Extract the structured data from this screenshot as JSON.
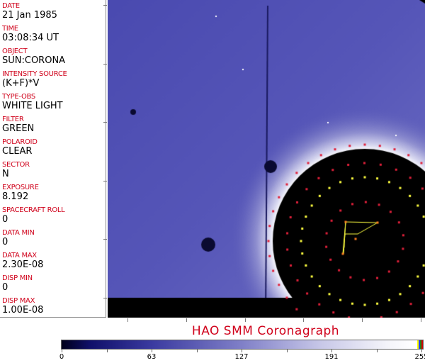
{
  "metadata": [
    {
      "label": "DATE",
      "value": "21 Jan 1985"
    },
    {
      "label": "TIME",
      "value": "03:08:34 UT"
    },
    {
      "label": "OBJECT",
      "value": "SUN:CORONA"
    },
    {
      "label": "INTENSITY SOURCE",
      "value": "(K+F)*V"
    },
    {
      "label": "TYPE-OBS",
      "value": "WHITE LIGHT"
    },
    {
      "label": "FILTER",
      "value": "GREEN"
    },
    {
      "label": "POLAROID",
      "value": "CLEAR"
    },
    {
      "label": "SECTOR",
      "value": "N"
    },
    {
      "label": "EXPOSURE",
      "value": "8.192"
    },
    {
      "label": "SPACECRAFT ROLL",
      "value": "0"
    },
    {
      "label": "DATA MIN",
      "value": "0"
    },
    {
      "label": "DATA MAX",
      "value": "2.30E-08"
    },
    {
      "label": "DISP MIN",
      "value": "0"
    },
    {
      "label": "DISP MAX",
      "value": "1.00E-08"
    }
  ],
  "title": "HAO   SMM  Coronagraph",
  "colorbar": {
    "ticks": [
      "0",
      "63",
      "127",
      "191",
      "255"
    ],
    "min": 0,
    "max": 255,
    "colormap": "dark-blue to white",
    "end_colors": [
      "#ffff00",
      "#2040ff",
      "#208020",
      "#d00000"
    ]
  },
  "colors": {
    "label": "#d0021b",
    "overlay_red": "#e0203a",
    "overlay_yellow": "#ffff40"
  }
}
